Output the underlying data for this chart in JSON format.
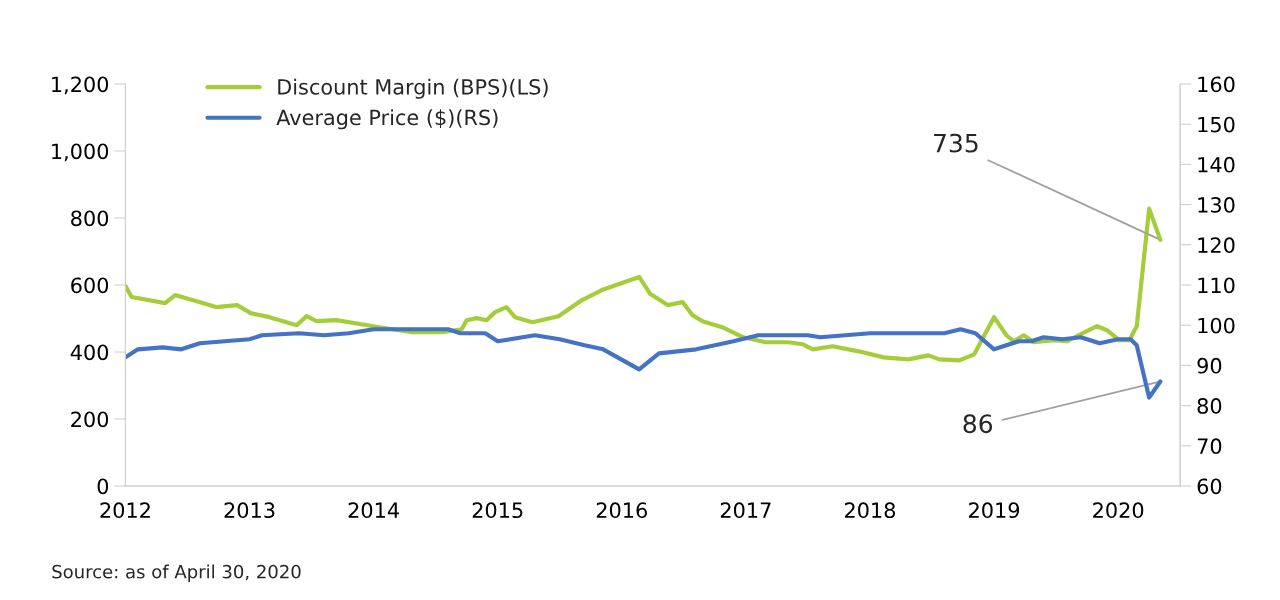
{
  "chart_data": {
    "type": "line",
    "xlim": [
      2012,
      2020.5
    ],
    "xticks": [
      2012,
      2013,
      2014,
      2015,
      2016,
      2017,
      2018,
      2019,
      2020
    ],
    "ylim": [
      0,
      1200
    ],
    "yticks": [
      0,
      200,
      400,
      600,
      800,
      {
        "value": 1000,
        "label": "1,000"
      },
      {
        "value": 1200,
        "label": "1,200"
      }
    ],
    "y2lim": [
      60,
      160
    ],
    "y2ticks": [
      60,
      70,
      80,
      90,
      100,
      110,
      120,
      130,
      140,
      150,
      160
    ],
    "grid": false,
    "legend": "top left",
    "line_style": "solid",
    "marker": "none",
    "series": [
      {
        "name": "Discount Margin (BPS)(LS)",
        "color": "#a5cd39",
        "x": [
          2012.0,
          2012.05,
          2012.32,
          2012.4,
          2012.65,
          2012.73,
          2012.9,
          2013.01,
          2013.16,
          2013.38,
          2013.46,
          2013.54,
          2013.7,
          2013.9,
          2014.1,
          2014.31,
          2014.55,
          2014.71,
          2014.75,
          2014.83,
          2014.91,
          2014.98,
          2015.07,
          2015.14,
          2015.28,
          2015.49,
          2015.68,
          2015.84,
          2016.14,
          2016.23,
          2016.37,
          2016.49,
          2016.57,
          2016.65,
          2016.81,
          2016.98,
          2017.16,
          2017.34,
          2017.46,
          2017.54,
          2017.7,
          2017.91,
          2018.11,
          2018.31,
          2018.47,
          2018.56,
          2018.72,
          2018.84,
          2019.0,
          2019.1,
          2019.16,
          2019.24,
          2019.32,
          2019.48,
          2019.59,
          2019.68,
          2019.83,
          2019.91,
          2020.01,
          2020.09,
          2020.15,
          2020.25,
          2020.34
        ],
        "values": [
          597,
          564,
          546,
          570,
          543,
          534,
          540,
          516,
          504,
          480,
          507,
          492,
          495,
          483,
          471,
          459,
          459,
          468,
          495,
          501,
          495,
          519,
          534,
          504,
          489,
          507,
          555,
          585,
          624,
          573,
          540,
          549,
          510,
          492,
          474,
          444,
          429,
          429,
          423,
          408,
          417,
          402,
          384,
          378,
          390,
          378,
          375,
          393,
          504,
          450,
          432,
          450,
          429,
          435,
          432,
          450,
          477,
          465,
          435,
          435,
          477,
          828,
          735
        ]
      },
      {
        "name": "Average Price ($)(RS)",
        "color": "#4472c4",
        "axis": "y2",
        "x": [
          2012.0,
          2012.1,
          2012.3,
          2012.45,
          2012.6,
          2012.8,
          2013.0,
          2013.1,
          2013.4,
          2013.6,
          2013.8,
          2014.0,
          2014.45,
          2014.6,
          2014.7,
          2014.9,
          2015.0,
          2015.2,
          2015.3,
          2015.5,
          2015.7,
          2015.85,
          2016.14,
          2016.3,
          2016.6,
          2016.9,
          2017.1,
          2017.5,
          2017.6,
          2018.0,
          2018.3,
          2018.6,
          2018.73,
          2018.85,
          2019.0,
          2019.2,
          2019.3,
          2019.4,
          2019.55,
          2019.7,
          2019.85,
          2020.0,
          2020.1,
          2020.15,
          2020.25,
          2020.34
        ],
        "values": [
          92,
          94,
          94.5,
          94,
          95.5,
          96,
          96.5,
          97.5,
          98,
          97.5,
          98,
          99,
          99,
          99,
          98,
          98,
          96,
          97,
          97.5,
          96.5,
          95,
          94,
          89,
          93,
          94,
          96,
          97.5,
          97.5,
          97,
          98,
          98,
          98,
          99,
          98,
          94,
          96,
          96,
          97,
          96.5,
          97,
          95.5,
          96.5,
          96.5,
          95,
          82,
          86
        ]
      }
    ],
    "annotations": [
      {
        "text": "735",
        "x": 2020.34,
        "y": 735
      },
      {
        "text": "86",
        "x": 2020.34,
        "y": 312
      },
      "Source: as of April 30, 2020"
    ]
  }
}
